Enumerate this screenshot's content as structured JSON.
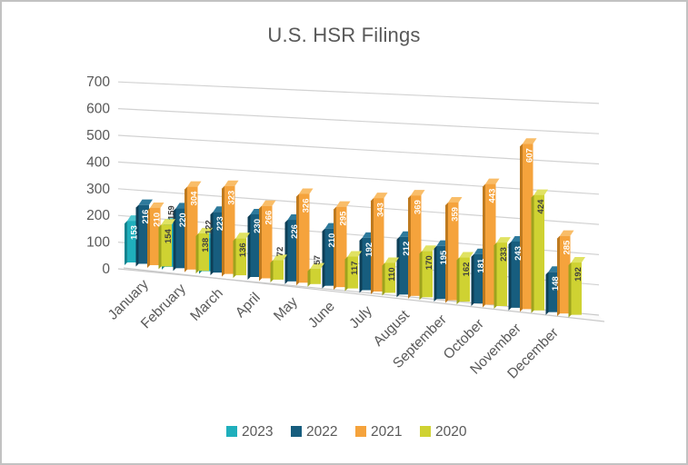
{
  "title": "U.S. HSR Filings",
  "chart_data": {
    "type": "bar",
    "projection": "3d-clustered-column",
    "title": "U.S. HSR Filings",
    "categories": [
      "January",
      "February",
      "March",
      "April",
      "May",
      "June",
      "July",
      "August",
      "September",
      "October",
      "November",
      "December"
    ],
    "series": [
      {
        "name": "2023",
        "color": "#1FAFBC",
        "side_color": "#13848F",
        "top_color": "#4CC6D0",
        "label_color": "#FFFFFF",
        "values": [
          153,
          159,
          122,
          null,
          null,
          null,
          null,
          null,
          null,
          null,
          null,
          null
        ],
        "outside_label_indices": [
          1,
          2
        ]
      },
      {
        "name": "2022",
        "color": "#175D7E",
        "side_color": "#0E3F57",
        "top_color": "#2E7A9C",
        "label_color": "#FFFFFF",
        "values": [
          216,
          220,
          223,
          230,
          226,
          210,
          192,
          212,
          195,
          181,
          243,
          148
        ],
        "outside_label_indices": []
      },
      {
        "name": "2021",
        "color": "#F5A33C",
        "side_color": "#BF7A1F",
        "top_color": "#F9BD68",
        "label_color": "#FFFFFF",
        "values": [
          210,
          304,
          323,
          266,
          326,
          295,
          343,
          369,
          359,
          443,
          607,
          285
        ],
        "outside_label_indices": []
      },
      {
        "name": "2020",
        "color": "#CFD232",
        "side_color": "#9EA31D",
        "top_color": "#E0E262",
        "label_color": "#404040",
        "values": [
          154,
          138,
          136,
          72,
          57,
          117,
          110,
          170,
          162,
          233,
          424,
          192
        ],
        "outside_label_indices": [
          3,
          4
        ]
      }
    ],
    "y_ticks": [
      0,
      100,
      200,
      300,
      400,
      500,
      600,
      700
    ],
    "ylim": [
      0,
      700
    ],
    "grid": true,
    "legend_position": "bottom",
    "outside_label_color": "#404040",
    "axis_text_color": "#595959",
    "gridline_color": "#D2D2D2",
    "floor_edge_color": "#C9C9C9"
  }
}
